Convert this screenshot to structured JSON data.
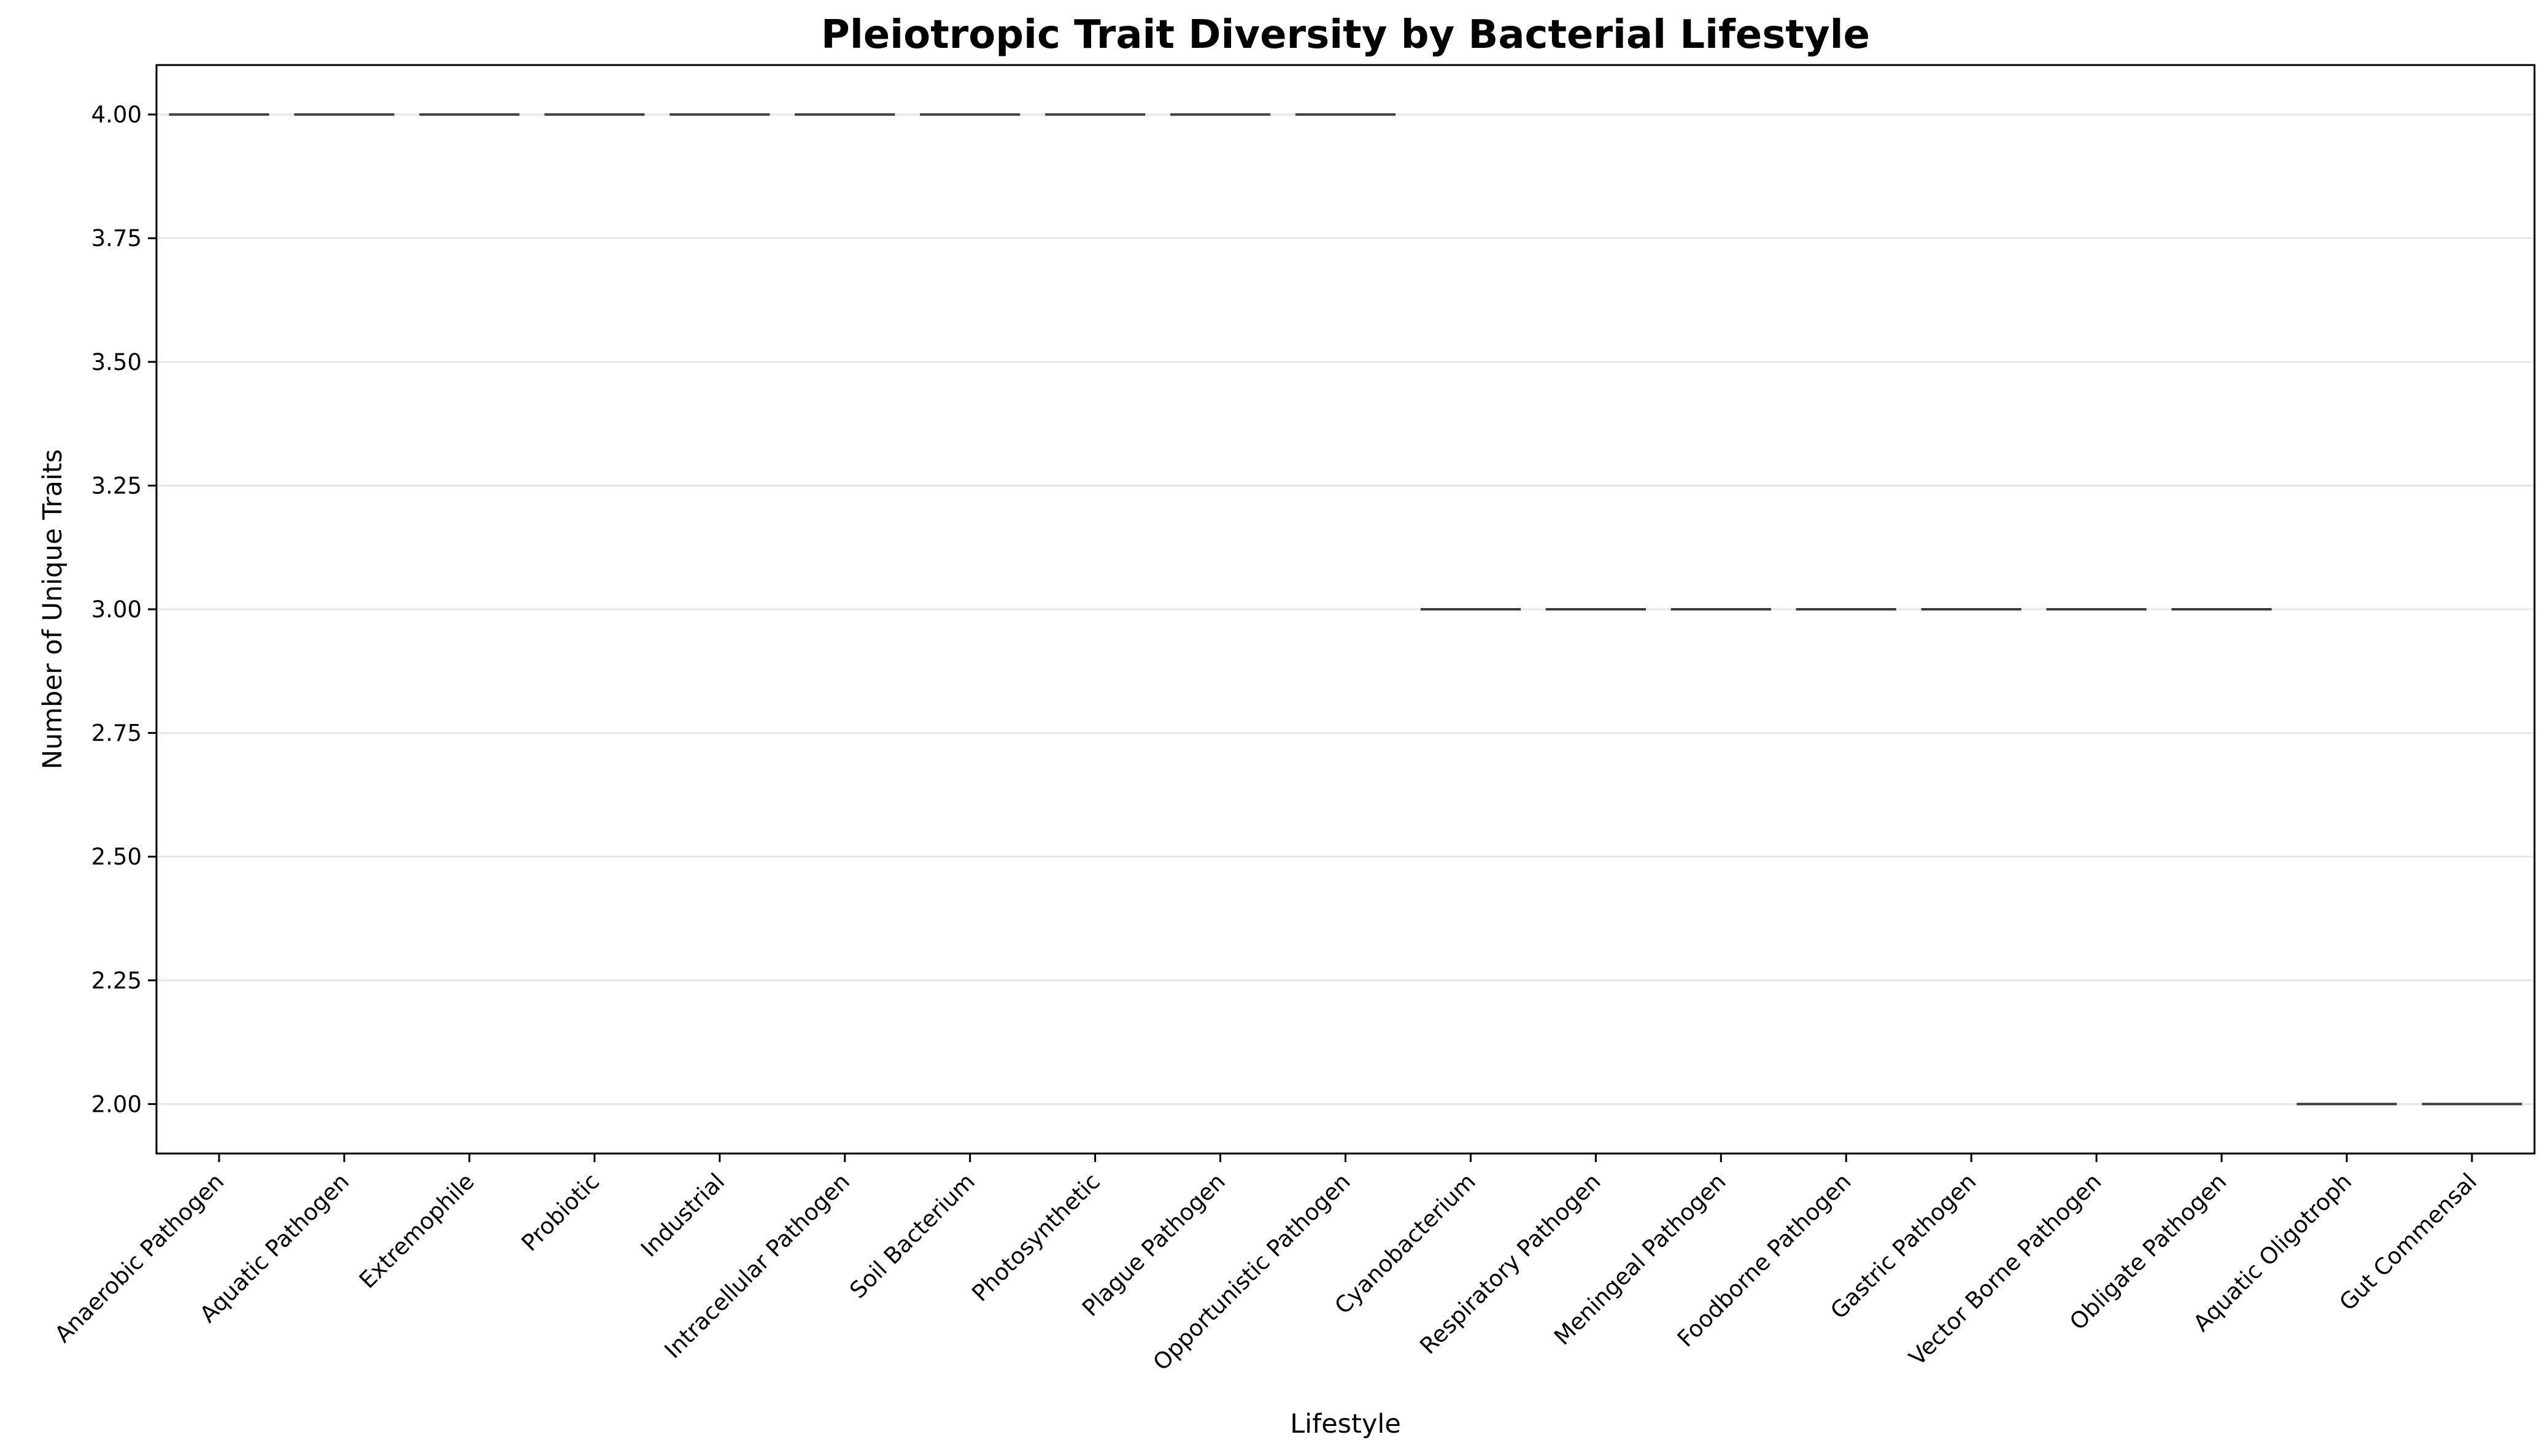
{
  "chart_data": {
    "type": "box",
    "title": "Pleiotropic Trait Diversity by Bacterial Lifestyle",
    "xlabel": "Lifestyle",
    "ylabel": "Number of Unique Traits",
    "categories": [
      "Anaerobic Pathogen",
      "Aquatic Pathogen",
      "Extremophile",
      "Probiotic",
      "Industrial",
      "Intracellular Pathogen",
      "Soil Bacterium",
      "Photosynthetic",
      "Plague Pathogen",
      "Opportunistic Pathogen",
      "Cyanobacterium",
      "Respiratory Pathogen",
      "Meningeal Pathogen",
      "Foodborne Pathogen",
      "Gastric Pathogen",
      "Vector Borne Pathogen",
      "Obligate Pathogen",
      "Aquatic Oligotroph",
      "Gut Commensal"
    ],
    "values": [
      4,
      4,
      4,
      4,
      4,
      4,
      4,
      4,
      4,
      4,
      3,
      3,
      3,
      3,
      3,
      3,
      3,
      2,
      2
    ],
    "yticks": [
      "2.00",
      "2.25",
      "2.50",
      "2.75",
      "3.00",
      "3.25",
      "3.50",
      "3.75",
      "4.00"
    ],
    "ylim": [
      1.9,
      4.1
    ],
    "grid": "y",
    "line_color": "#3c3c3c",
    "grid_color": "#e6e6e6"
  }
}
